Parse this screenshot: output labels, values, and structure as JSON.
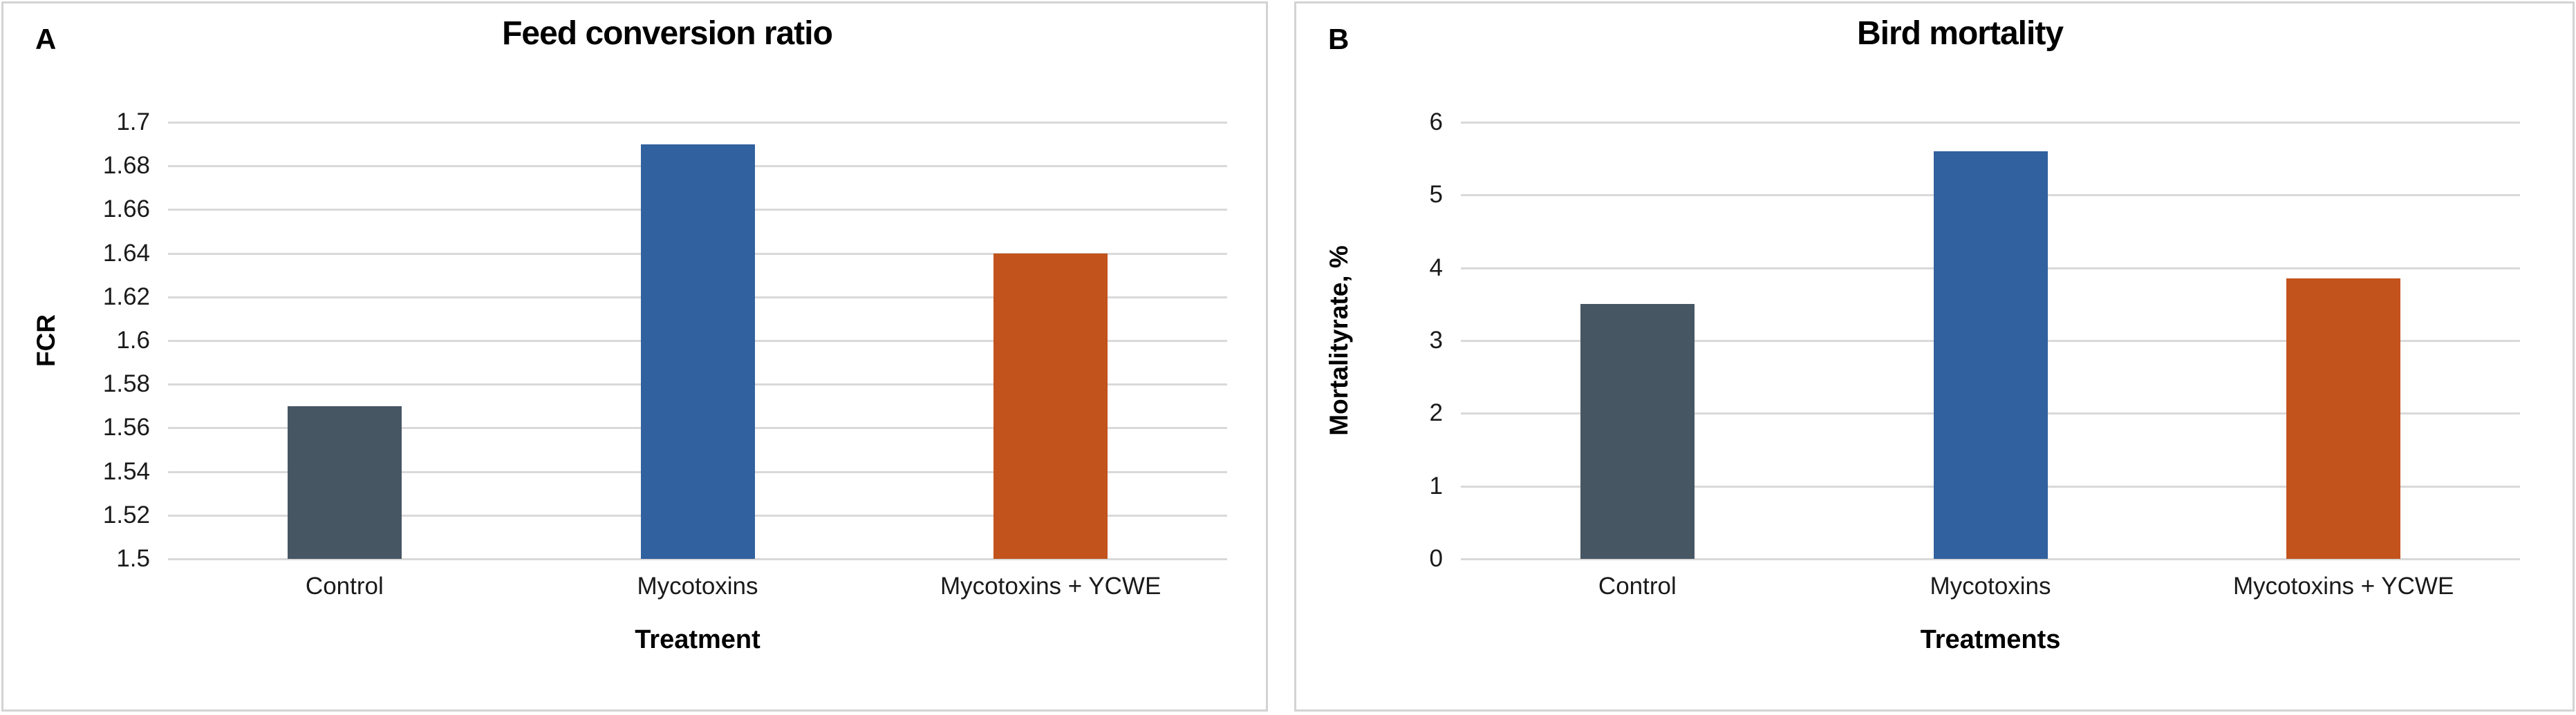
{
  "figure": {
    "background": "#FFFFFF",
    "panel_border_color": "#D3D3D3"
  },
  "chart_data": [
    {
      "panel_label": "A",
      "type": "bar",
      "title": "Feed conversion ratio",
      "xlabel": "Treatment",
      "ylabel": "FCR",
      "categories": [
        "Control",
        "Mycotoxins",
        "Mycotoxins + YCWE"
      ],
      "values": [
        1.57,
        1.69,
        1.64
      ],
      "ylim": [
        1.5,
        1.7
      ],
      "ytick_step": 0.02,
      "ytick_labels": [
        "1.5",
        "1.52",
        "1.54",
        "1.56",
        "1.58",
        "1.6",
        "1.62",
        "1.64",
        "1.66",
        "1.68",
        "1.7"
      ],
      "bar_colors": [
        "#475663",
        "#31619E",
        "#C2531D"
      ],
      "grid": true,
      "gridline_color": "#D9D9D9",
      "legend": "none"
    },
    {
      "panel_label": "B",
      "type": "bar",
      "title": "Bird mortality",
      "xlabel": "Treatments",
      "ylabel": "Mortalityrate, %",
      "categories": [
        "Control",
        "Mycotoxins",
        "Mycotoxins + YCWE"
      ],
      "values": [
        3.5,
        5.6,
        3.85
      ],
      "ylim": [
        0,
        6
      ],
      "ytick_step": 1,
      "ytick_labels": [
        "0",
        "1",
        "2",
        "3",
        "4",
        "5",
        "6"
      ],
      "bar_colors": [
        "#475663",
        "#31619E",
        "#C2531D"
      ],
      "grid": true,
      "gridline_color": "#D9D9D9",
      "legend": "none"
    }
  ]
}
